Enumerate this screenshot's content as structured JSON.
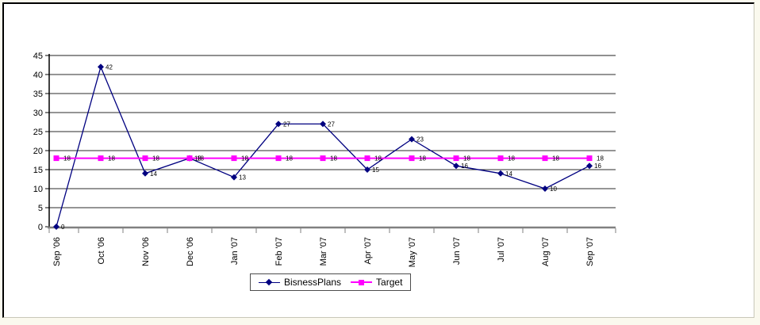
{
  "chart_data": {
    "type": "line",
    "title": "",
    "xlabel": "",
    "ylabel": "",
    "categories": [
      "Sep '06",
      "Oct '06",
      "Nov '06",
      "Dec '06",
      "Jan '07",
      "Feb '07",
      "Mar '07",
      "Apr '07",
      "May '07",
      "Jun '07",
      "Jul '07",
      "Aug '07",
      "Sep '07"
    ],
    "series": [
      {
        "name": "BisnessPlans",
        "marker": "diamond",
        "color": "#000080",
        "values": [
          0,
          42,
          14,
          18,
          13,
          27,
          27,
          15,
          23,
          16,
          14,
          10,
          16
        ]
      },
      {
        "name": "Target",
        "marker": "square",
        "color": "#FF00FF",
        "values": [
          18,
          18,
          18,
          18,
          18,
          18,
          18,
          18,
          18,
          18,
          18,
          18,
          18
        ]
      }
    ],
    "ylim": [
      0,
      45
    ],
    "ytick_step": 5,
    "yticks": [
      0,
      5,
      10,
      15,
      20,
      25,
      30,
      35,
      40,
      45
    ],
    "grid": true,
    "data_labels": true,
    "legend_position": "bottom",
    "colors": {
      "gridline": "#2b2b2b",
      "axis": "#808080",
      "plot_background": "#ffffff",
      "label_text": "#000000"
    }
  }
}
